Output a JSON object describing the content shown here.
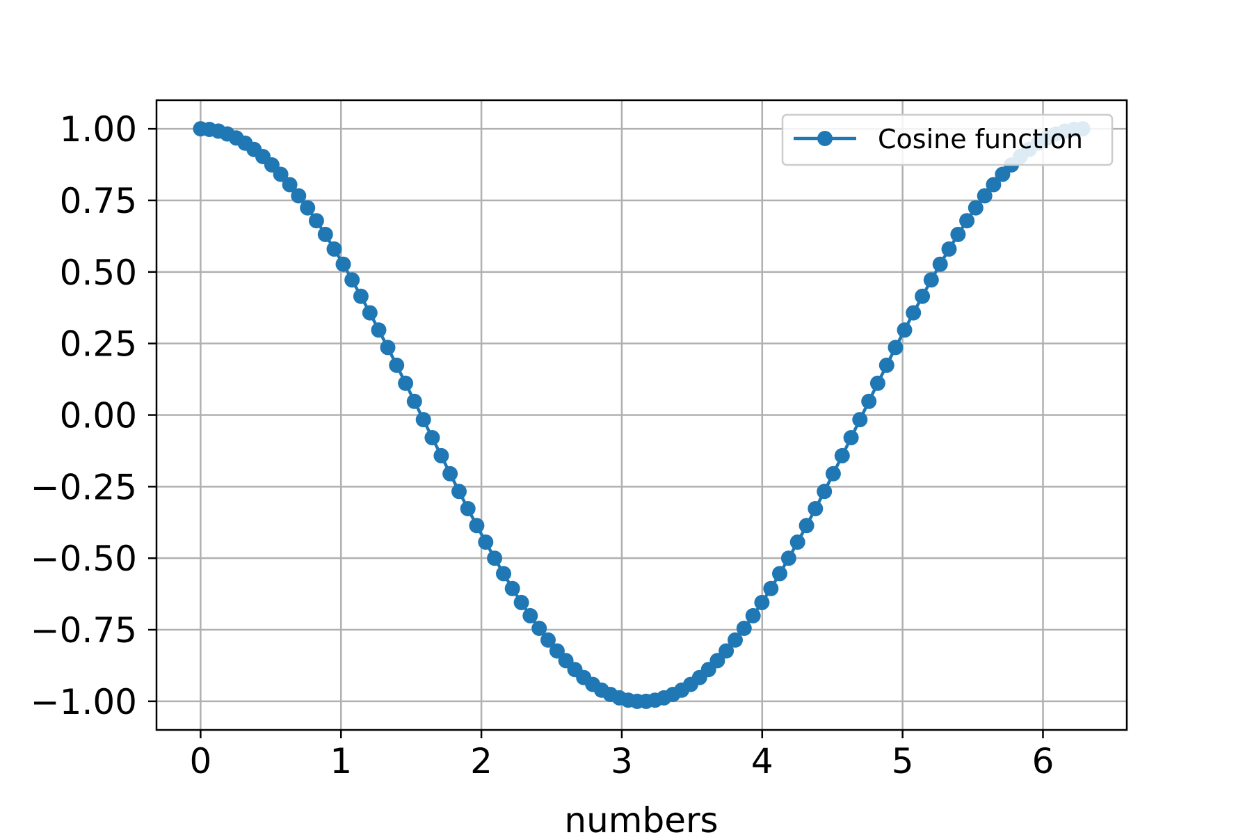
{
  "chart_data": {
    "type": "line",
    "title": "",
    "xlabel": "numbers",
    "ylabel": "",
    "xlim": [
      -0.314,
      6.597
    ],
    "ylim": [
      -1.1,
      1.1
    ],
    "xticks": [
      0,
      1,
      2,
      3,
      4,
      5,
      6
    ],
    "xtick_labels": [
      "0",
      "1",
      "2",
      "3",
      "4",
      "5",
      "6"
    ],
    "yticks": [
      1.0,
      0.75,
      0.5,
      0.25,
      0.0,
      -0.25,
      -0.5,
      -0.75,
      -1.0
    ],
    "ytick_labels": [
      "1.00",
      "0.75",
      "0.50",
      "0.25",
      "0.00",
      "−0.25",
      "−0.50",
      "−0.75",
      "−1.00"
    ],
    "grid": true,
    "legend": {
      "position": "upper right",
      "entries": [
        "Cosine function"
      ]
    },
    "series": [
      {
        "name": "Cosine function",
        "color": "#1f77b4",
        "marker": "circle",
        "x": [
          0.0,
          0.063,
          0.127,
          0.19,
          0.254,
          0.317,
          0.381,
          0.444,
          0.508,
          0.571,
          0.635,
          0.698,
          0.762,
          0.825,
          0.889,
          0.952,
          1.016,
          1.079,
          1.142,
          1.206,
          1.269,
          1.333,
          1.396,
          1.46,
          1.523,
          1.587,
          1.65,
          1.714,
          1.777,
          1.841,
          1.904,
          1.967,
          2.031,
          2.094,
          2.158,
          2.221,
          2.285,
          2.348,
          2.412,
          2.475,
          2.539,
          2.602,
          2.666,
          2.729,
          2.793,
          2.856,
          2.919,
          2.983,
          3.046,
          3.11,
          3.173,
          3.237,
          3.3,
          3.364,
          3.427,
          3.491,
          3.554,
          3.618,
          3.681,
          3.744,
          3.808,
          3.871,
          3.935,
          3.998,
          4.062,
          4.125,
          4.189,
          4.252,
          4.316,
          4.379,
          4.443,
          4.506,
          4.57,
          4.633,
          4.696,
          4.76,
          4.823,
          4.887,
          4.95,
          5.014,
          5.077,
          5.141,
          5.204,
          5.268,
          5.331,
          5.395,
          5.458,
          5.521,
          5.585,
          5.648,
          5.712,
          5.775,
          5.839,
          5.902,
          5.966,
          6.029,
          6.093,
          6.156,
          6.22,
          6.283
        ],
        "y": [
          1.0,
          0.998,
          0.992,
          0.982,
          0.968,
          0.95,
          0.928,
          0.903,
          0.874,
          0.841,
          0.805,
          0.766,
          0.724,
          0.679,
          0.631,
          0.58,
          0.527,
          0.472,
          0.415,
          0.357,
          0.297,
          0.236,
          0.174,
          0.111,
          0.048,
          -0.016,
          -0.079,
          -0.142,
          -0.205,
          -0.267,
          -0.327,
          -0.386,
          -0.444,
          -0.5,
          -0.554,
          -0.606,
          -0.655,
          -0.701,
          -0.745,
          -0.786,
          -0.824,
          -0.858,
          -0.889,
          -0.917,
          -0.941,
          -0.961,
          -0.976,
          -0.988,
          -0.996,
          -1.0,
          -1.0,
          -0.996,
          -0.988,
          -0.976,
          -0.961,
          -0.941,
          -0.917,
          -0.889,
          -0.858,
          -0.824,
          -0.786,
          -0.745,
          -0.701,
          -0.655,
          -0.606,
          -0.554,
          -0.5,
          -0.444,
          -0.386,
          -0.327,
          -0.267,
          -0.205,
          -0.142,
          -0.079,
          -0.016,
          0.048,
          0.111,
          0.174,
          0.236,
          0.297,
          0.357,
          0.415,
          0.472,
          0.527,
          0.58,
          0.631,
          0.679,
          0.724,
          0.766,
          0.805,
          0.841,
          0.874,
          0.903,
          0.928,
          0.95,
          0.968,
          0.982,
          0.992,
          0.998,
          1.0
        ]
      }
    ]
  }
}
